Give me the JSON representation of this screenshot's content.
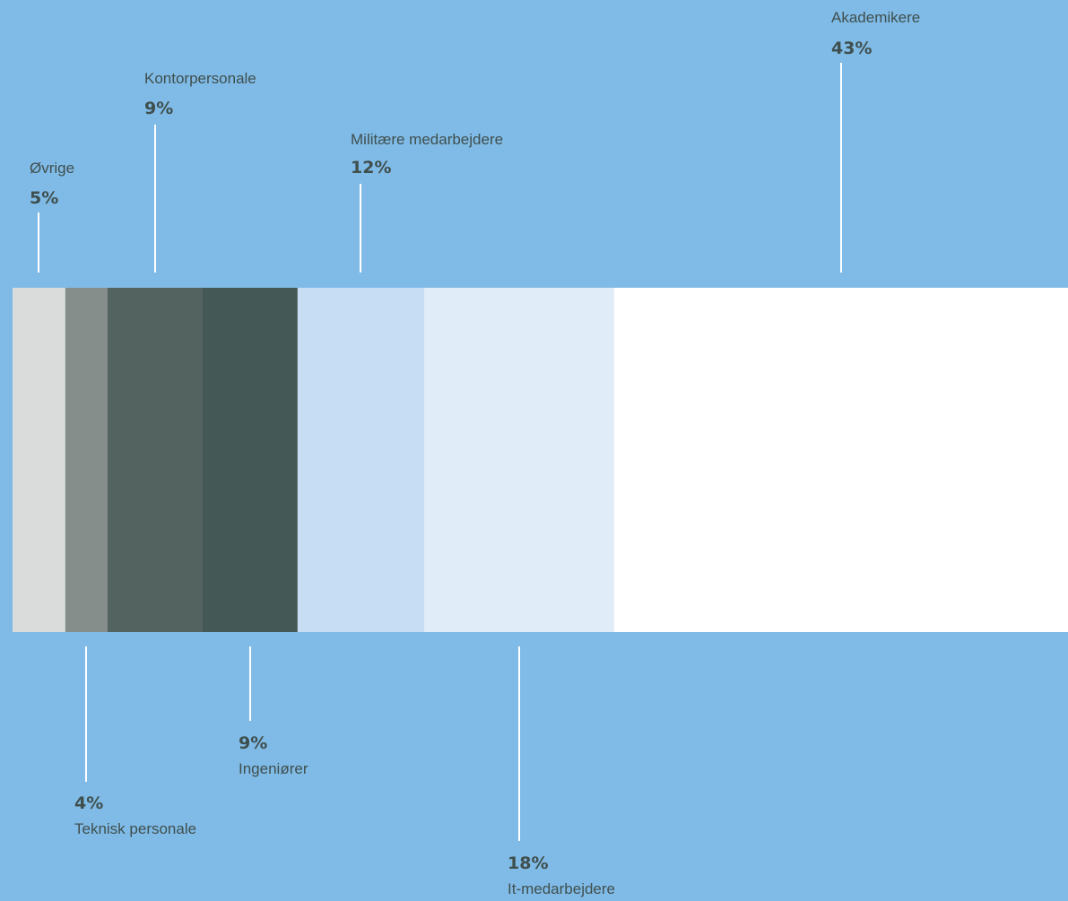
{
  "chart_data": {
    "type": "bar",
    "orientation": "horizontal-stacked",
    "title": "",
    "categories": [
      "Øvrige",
      "Teknisk personale",
      "Kontorpersonale",
      "Ingeniører",
      "Militære medarbejdere",
      "It-medarbejdere",
      "Akademikere"
    ],
    "values": [
      5,
      4,
      9,
      9,
      12,
      18,
      43
    ],
    "value_labels": [
      "5%",
      "4%",
      "9%",
      "9%",
      "12%",
      "18%",
      "43%"
    ],
    "label_side": [
      "top",
      "bottom",
      "top",
      "bottom",
      "top",
      "bottom",
      "top"
    ],
    "unit": "%",
    "background_color": "#80bbe7",
    "text_color": "#3f4f4d",
    "leader_line_color": "#ffffff",
    "colors": [
      "#d9dcdb",
      "#868e8b",
      "#53635f",
      "#445855",
      "#c6ddf4",
      "#e1ecf9",
      "#ffffff"
    ]
  }
}
